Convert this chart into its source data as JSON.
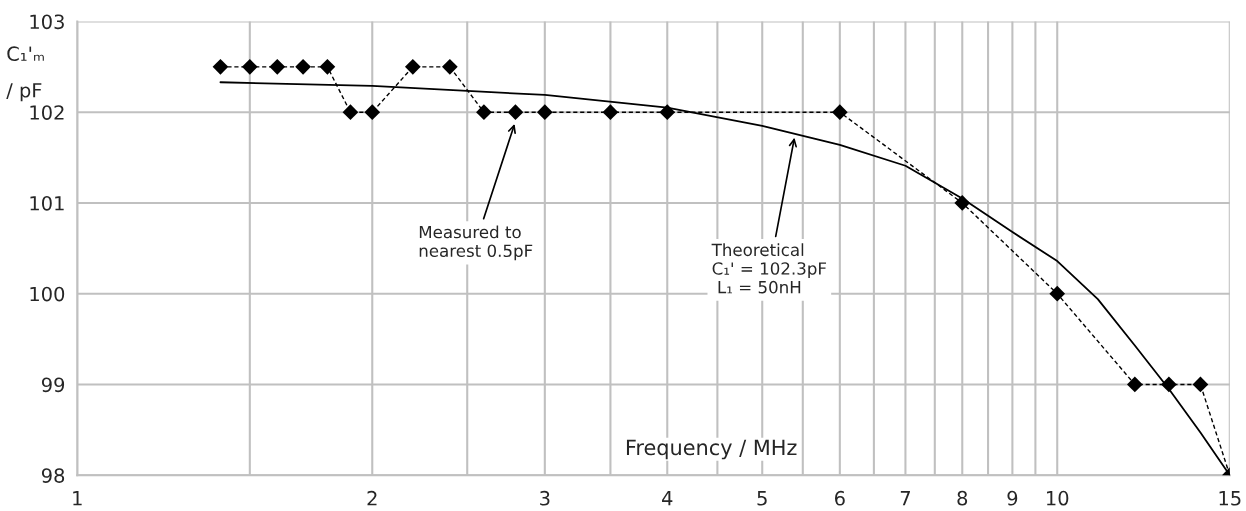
{
  "chart_data": {
    "type": "line",
    "xlabel": "Frequency / MHz",
    "ylabel": "C₁'ₘ\n/ pF",
    "log": "x",
    "grid": true,
    "legend": false,
    "xlim": [
      1,
      15
    ],
    "ylim": [
      98,
      103
    ],
    "xticks": [
      1,
      {
        "value": 1.5,
        "label": null
      },
      2,
      {
        "value": 2.5,
        "label": null
      },
      3,
      {
        "value": 3.5,
        "label": null
      },
      4,
      {
        "value": 4.5,
        "label": null
      },
      5,
      {
        "value": 5.5,
        "label": null
      },
      6,
      {
        "value": 6.5,
        "label": null
      },
      7,
      {
        "value": 7.5,
        "label": null
      },
      8,
      {
        "value": 8.5,
        "label": null
      },
      9,
      {
        "value": 9.5,
        "label": null
      },
      10,
      15
    ],
    "yticks": [
      98,
      99,
      100,
      101,
      102,
      103
    ],
    "series": [
      {
        "color": "#000000",
        "marker": "diamond",
        "line_style": "dashed",
        "x": [
          1.4,
          1.5,
          1.6,
          1.7,
          1.8,
          1.9,
          2,
          2.2,
          2.4,
          2.6,
          2.8,
          3,
          3.5,
          4,
          6,
          8,
          10,
          12,
          13,
          14,
          15
        ],
        "values": [
          102.5,
          102.5,
          102.5,
          102.5,
          102.5,
          102,
          102,
          102.5,
          102.5,
          102,
          102,
          102,
          102,
          102,
          102,
          101,
          100,
          99,
          99,
          99,
          98
        ]
      },
      {
        "color": "#000000",
        "marker": "none",
        "line_style": "solid",
        "x": [
          1.4,
          2,
          3,
          4,
          5,
          6,
          7,
          8,
          9,
          10,
          11,
          12,
          13,
          14,
          15
        ],
        "values": [
          102.33,
          102.29,
          102.19,
          102.05,
          101.85,
          101.64,
          101.41,
          101.05,
          100.68,
          100.36,
          99.94,
          99.43,
          98.95,
          98.47,
          98
        ]
      }
    ],
    "annotations": [
      {
        "text": "Measured to\nnearest 0.5pF",
        "x": 2.8,
        "y": 101.9
      },
      {
        "text": "Theoretical\nC₁' = 102.3pF\n L₁ = 50nH",
        "x": 5.4,
        "y": 101.75
      }
    ]
  }
}
